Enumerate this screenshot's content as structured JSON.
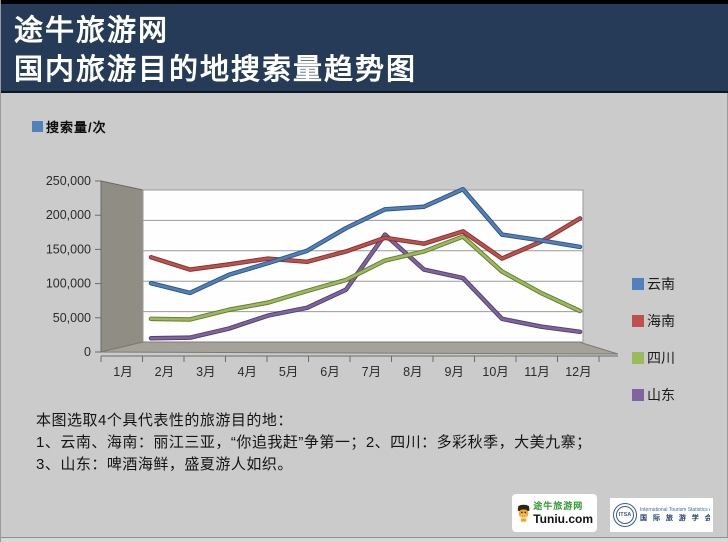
{
  "header": {
    "line1": "途牛旅游网",
    "line2": "国内旅游目的地搜索量趋势图"
  },
  "chart_data": {
    "type": "line",
    "style": "3d-line",
    "legend_top": {
      "label": "搜索量/次",
      "color": "#4F81BD"
    },
    "categories": [
      "1月",
      "2月",
      "3月",
      "4月",
      "5月",
      "6月",
      "7月",
      "8月",
      "9月",
      "10月",
      "11月",
      "12月"
    ],
    "series": [
      {
        "name": "云南",
        "color": "#4F81BD",
        "values": [
          100000,
          85000,
          113000,
          131000,
          150000,
          185000,
          214000,
          218000,
          245000,
          175000,
          166000,
          156000
        ]
      },
      {
        "name": "海南",
        "color": "#C0504D",
        "values": [
          140000,
          121000,
          129000,
          138000,
          133000,
          149000,
          170000,
          161000,
          180000,
          138000,
          164000,
          200000
        ]
      },
      {
        "name": "四川",
        "color": "#9BBB59",
        "values": [
          45000,
          44000,
          59000,
          70000,
          88000,
          105000,
          135000,
          149000,
          172000,
          118000,
          85000,
          57000
        ]
      },
      {
        "name": "山东",
        "color": "#8064A2",
        "values": [
          15000,
          16000,
          30000,
          50000,
          62000,
          90000,
          175000,
          121000,
          108000,
          45000,
          33000,
          25000
        ]
      }
    ],
    "ylim": [
      0,
      250000
    ],
    "y_ticks": [
      "0",
      "50,000",
      "100,000",
      "150,000",
      "200,000",
      "250,000"
    ],
    "grid": true,
    "legend_position": "right"
  },
  "notes": {
    "line1": "本图选取4个具代表性的旅游目的地：",
    "line2": "1、云南、海南：丽江三亚，“你追我赶”争第一；2、四川：多彩秋季，大美九寨；",
    "line3": "3、山东：啤酒海鲜，盛夏游人如织。"
  },
  "footer": {
    "tuniu_logo": {
      "cn": "途牛旅游网",
      "en": "Tuniu.com"
    },
    "itsa_logo": {
      "abbr": "ITSA",
      "en": "International Tourism Statistics Association",
      "cn": "国 际 旅 游 学 会"
    }
  },
  "colors": {
    "header_bg": "#253B57",
    "slide_bg": "#CBCBCB",
    "wall_side": "#908D85",
    "floor": "#A5A29A",
    "plot_bg": "#FEFEFE",
    "gridline": "#9A9A9A"
  }
}
